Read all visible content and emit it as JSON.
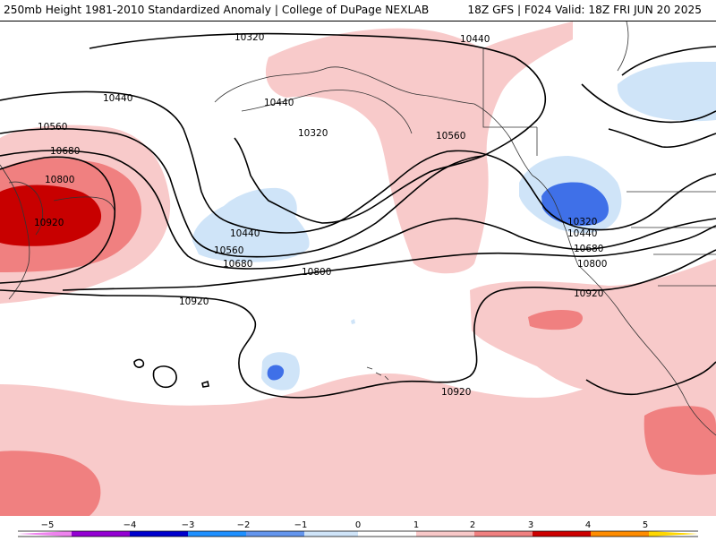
{
  "header": {
    "left": "250mb Height 1981-2010 Standardized Anomaly | College of DuPage NEXLAB",
    "right": "18Z GFS | F024 Valid: 18Z FRI JUN 20 2025"
  },
  "contour_labels": [
    {
      "id": "c1",
      "text": "10320"
    },
    {
      "id": "c2",
      "text": "10440"
    },
    {
      "id": "c3",
      "text": "10440"
    },
    {
      "id": "c4",
      "text": "10440"
    },
    {
      "id": "c5",
      "text": "10560"
    },
    {
      "id": "c6",
      "text": "10680"
    },
    {
      "id": "c7",
      "text": "10800"
    },
    {
      "id": "c8",
      "text": "10920"
    },
    {
      "id": "c9",
      "text": "10320"
    },
    {
      "id": "c10",
      "text": "10440"
    },
    {
      "id": "c11",
      "text": "10560"
    },
    {
      "id": "c12",
      "text": "10680"
    },
    {
      "id": "c13",
      "text": "10560"
    },
    {
      "id": "c14",
      "text": "10320"
    },
    {
      "id": "c15",
      "text": "10440"
    },
    {
      "id": "c16",
      "text": "10680"
    },
    {
      "id": "c17",
      "text": "10800"
    },
    {
      "id": "c18",
      "text": "10800"
    },
    {
      "id": "c19",
      "text": "10920"
    },
    {
      "id": "c20",
      "text": "10920"
    },
    {
      "id": "c21",
      "text": "10920"
    }
  ],
  "scale": {
    "ticks": [
      "−5",
      "−4",
      "−3",
      "−2",
      "−1",
      "0",
      "1",
      "2",
      "3",
      "4",
      "5"
    ],
    "colors": [
      "#ee82ee",
      "#9400d3",
      "#0000cd",
      "#1e90ff",
      "#6495ed",
      "#cfe4f8",
      "#ffffff",
      "#ffffff",
      "#f8c8c8",
      "#f08080",
      "#cd0000",
      "#ff8c00",
      "#ffd700"
    ]
  }
}
